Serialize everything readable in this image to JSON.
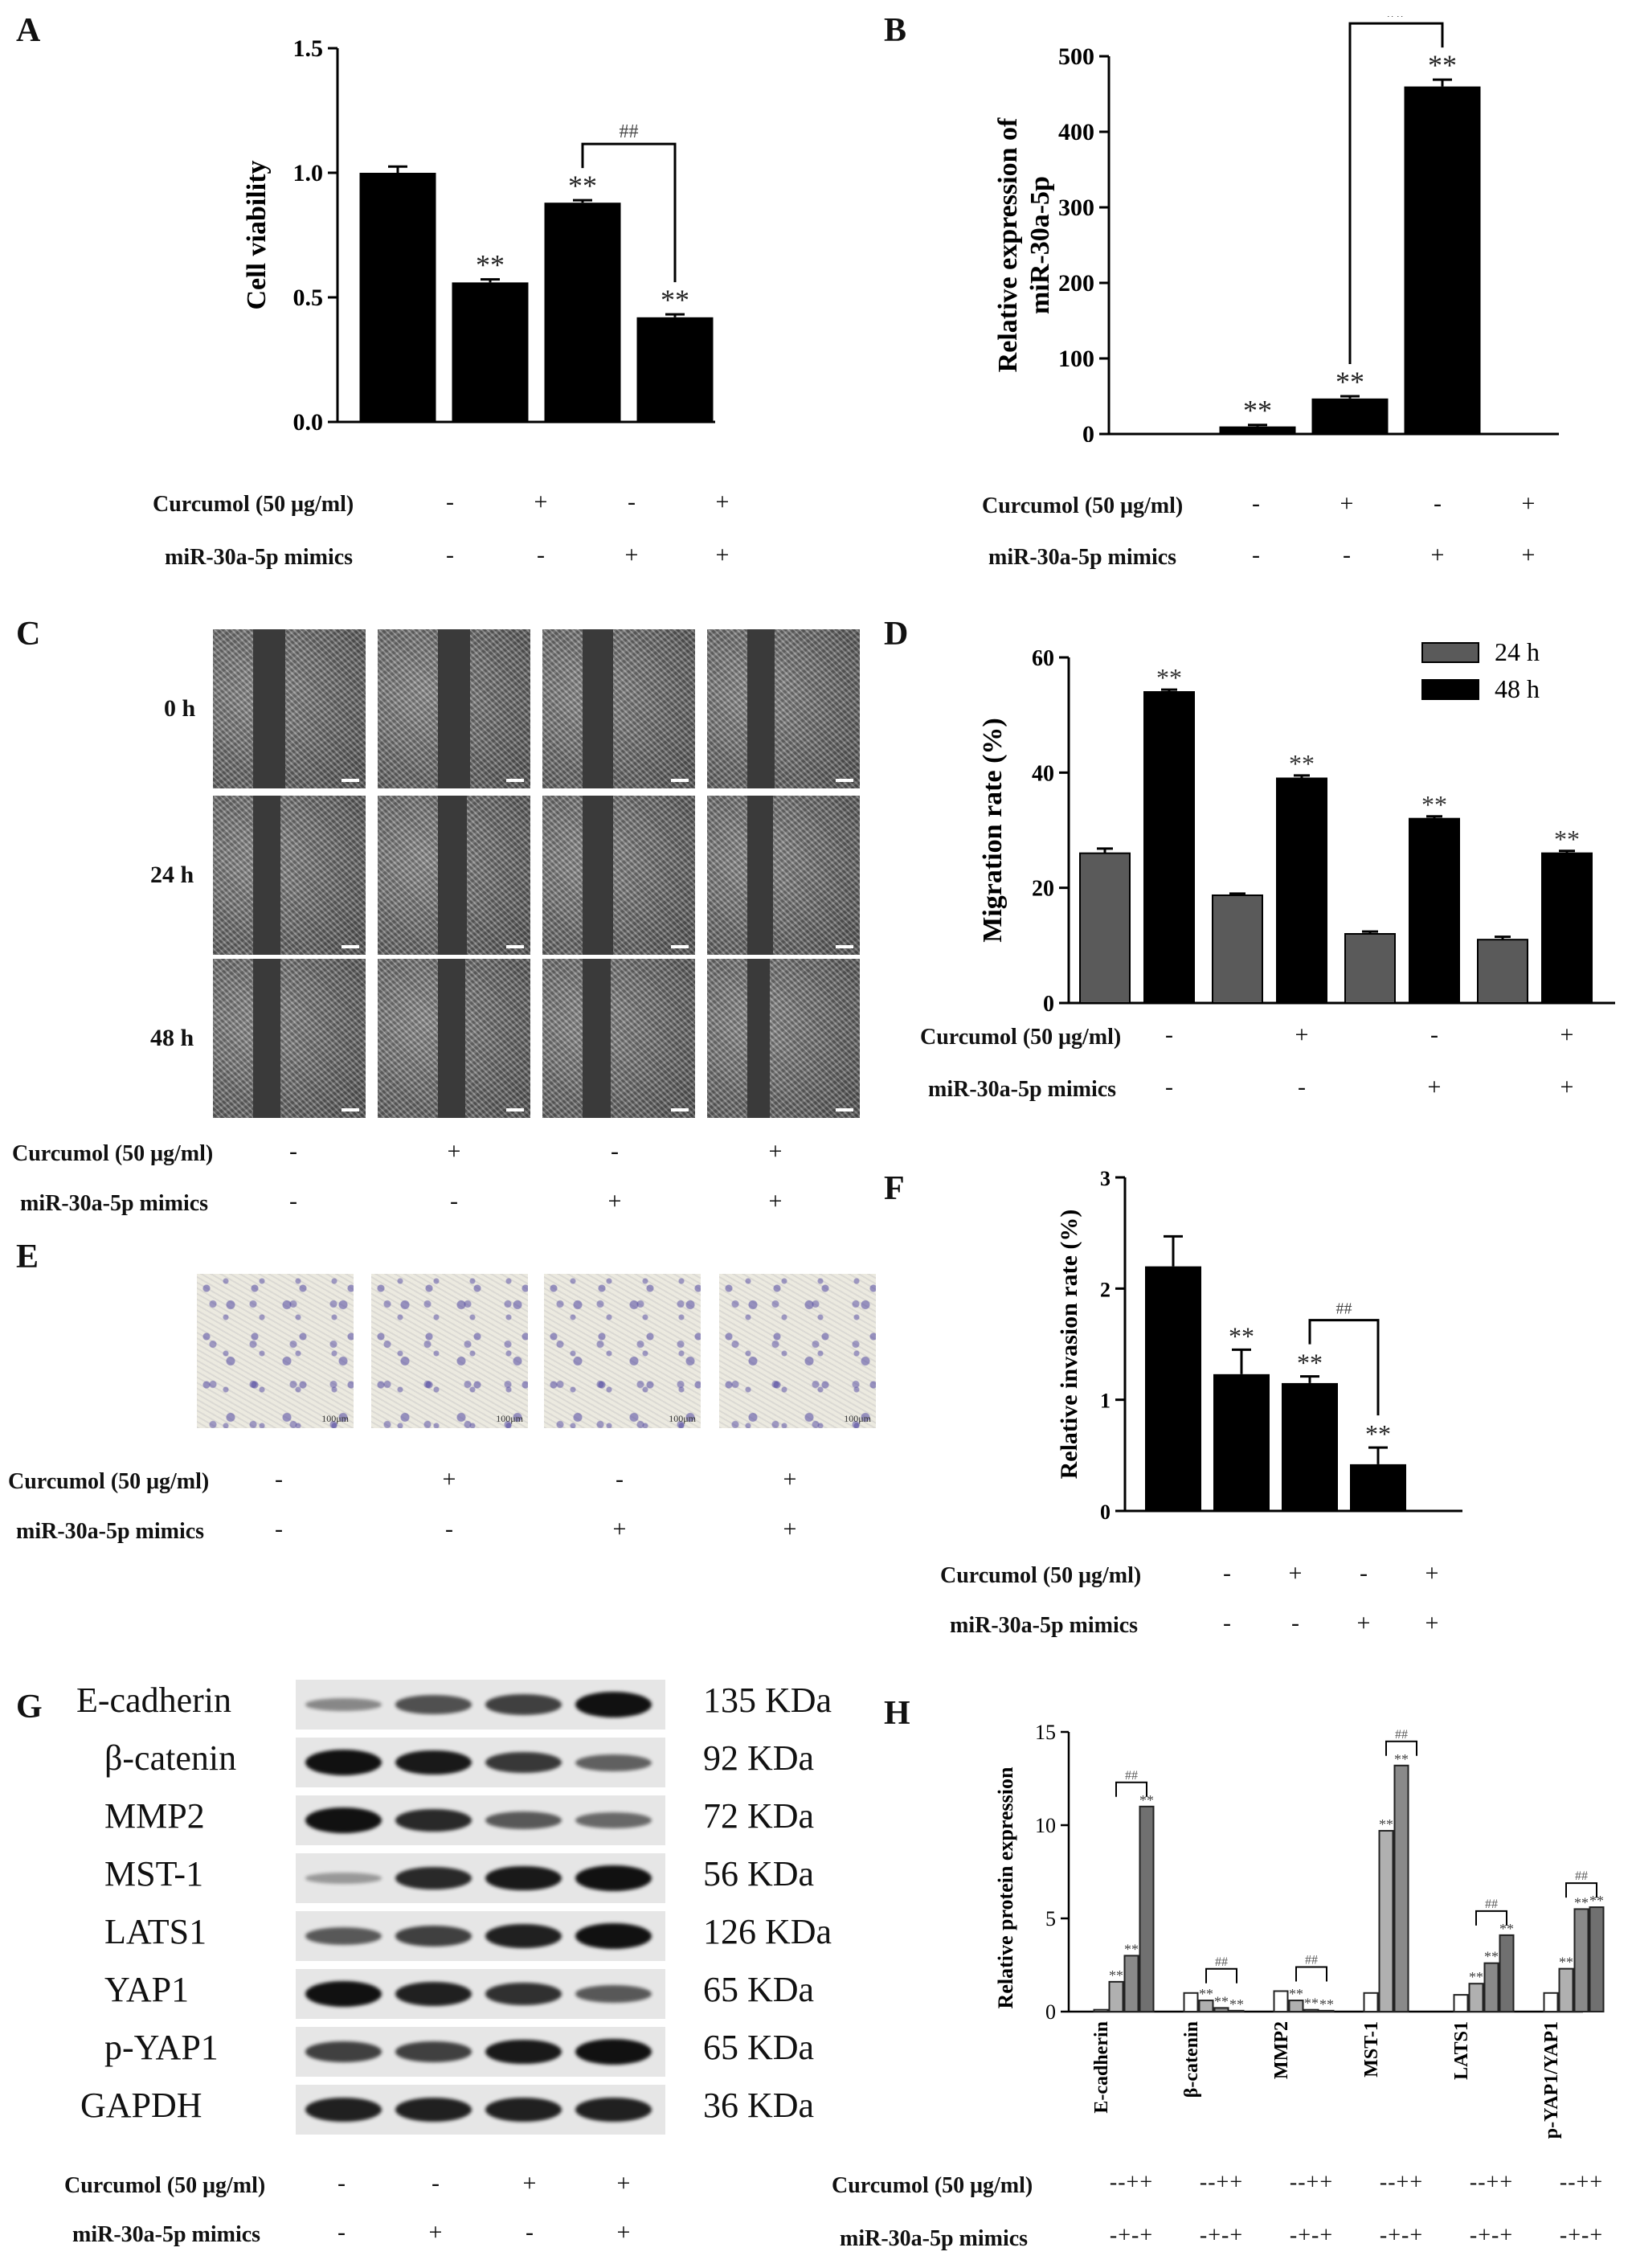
{
  "panels": {
    "A": "A",
    "B": "B",
    "C": "C",
    "D": "D",
    "E": "E",
    "F": "F",
    "G": "G",
    "H": "H"
  },
  "condition_labels": {
    "curcumol": "Curcumol (50 μg/ml)",
    "mimics": "miR-30a-5p mimics"
  },
  "signs": {
    "curcumol": [
      "-",
      "+",
      "-",
      "+"
    ],
    "mimics": [
      "-",
      "-",
      "+",
      "+"
    ],
    "western_curcumol": [
      "-",
      "-",
      "+",
      "+"
    ],
    "western_mimics": [
      "-",
      "+",
      "-",
      "+"
    ],
    "h_curcumol": "--++",
    "h_mimics": "-+-+"
  },
  "scratch_times": [
    "0 h",
    "24 h",
    "48 h"
  ],
  "transwell_scale": "100μm",
  "western": {
    "proteins": [
      "E-cadherin",
      "β-catenin",
      "MMP2",
      "MST-1",
      "LATS1",
      "YAP1",
      "p-YAP1",
      "GAPDH"
    ],
    "sizes": [
      "135 KDa",
      "92 KDa",
      "72 KDa",
      "56 KDa",
      "126 KDa",
      "65 KDa",
      "65 KDa",
      "36 KDa"
    ],
    "intensities": [
      [
        0.25,
        0.6,
        0.7,
        1.0
      ],
      [
        1.0,
        0.95,
        0.75,
        0.5
      ],
      [
        1.0,
        0.85,
        0.55,
        0.45
      ],
      [
        0.15,
        0.85,
        0.95,
        1.0
      ],
      [
        0.55,
        0.7,
        0.9,
        1.0
      ],
      [
        1.0,
        0.9,
        0.8,
        0.55
      ],
      [
        0.7,
        0.7,
        0.95,
        1.0
      ],
      [
        0.9,
        0.9,
        0.9,
        0.9
      ]
    ]
  },
  "chart_data": [
    {
      "id": "A",
      "type": "bar",
      "ylabel": "Cell viability",
      "ylim": [
        0,
        1.5
      ],
      "yticks": [
        "0.0",
        "0.5",
        "1.0",
        "1.5"
      ],
      "values": [
        1.0,
        0.56,
        0.88,
        0.42
      ],
      "errors": [
        0.025,
        0.012,
        0.01,
        0.012
      ],
      "annotations": [
        "",
        "**",
        "**",
        "**"
      ],
      "bracket": {
        "from": 2,
        "to": 3,
        "label": "##"
      }
    },
    {
      "id": "B",
      "type": "bar",
      "ylabel": "Relative expression of miR-30a-5p",
      "ylim": [
        0,
        500
      ],
      "yticks": [
        "0",
        "100",
        "200",
        "300",
        "400",
        "500"
      ],
      "values": [
        1,
        10,
        47,
        460
      ],
      "errors": [
        0,
        2,
        3,
        9
      ],
      "annotations": [
        "",
        "**",
        "**",
        "**"
      ],
      "bracket": {
        "from": 2,
        "to": 3,
        "label": "##"
      }
    },
    {
      "id": "D",
      "type": "bar",
      "ylabel": "Migration rate (%)",
      "ylim": [
        0,
        60
      ],
      "yticks": [
        "0",
        "20",
        "40",
        "60"
      ],
      "series": [
        {
          "name": "24 h",
          "color": "#5a5a5a",
          "values": [
            26,
            18.7,
            12,
            11
          ],
          "errors": [
            0.8,
            0.3,
            0.4,
            0.5
          ]
        },
        {
          "name": "48 h",
          "color": "#000000",
          "values": [
            54,
            39,
            32,
            26
          ],
          "errors": [
            0.4,
            0.5,
            0.4,
            0.4
          ]
        }
      ],
      "annotations": [
        "**",
        "**",
        "**",
        "**"
      ],
      "legend": "top-right"
    },
    {
      "id": "F",
      "type": "bar",
      "ylabel": "Relative invasion rate (%)",
      "ylim": [
        0,
        3
      ],
      "yticks": [
        "0",
        "1",
        "2",
        "3"
      ],
      "values": [
        2.2,
        1.23,
        1.15,
        0.42
      ],
      "errors": [
        0.27,
        0.22,
        0.06,
        0.15
      ],
      "annotations": [
        "",
        "**",
        "**",
        "**"
      ],
      "bracket": {
        "from": 2,
        "to": 3,
        "label": "##"
      }
    },
    {
      "id": "H",
      "type": "bar",
      "ylabel": "Relative protein expression",
      "ylim": [
        0,
        15
      ],
      "yticks": [
        "0",
        "5",
        "10",
        "15"
      ],
      "categories": [
        "E-cadherin",
        "β-catenin",
        "MMP2",
        "MST-1",
        "LATS1",
        "p-YAP1/YAP1"
      ],
      "groups": [
        {
          "values": [
            0.1,
            1.6,
            3.0,
            11.0
          ],
          "annotations": [
            "",
            "**",
            "**",
            "**"
          ]
        },
        {
          "values": [
            1.0,
            0.6,
            0.2,
            0.05
          ],
          "annotations": [
            "",
            "**",
            "**",
            "**"
          ]
        },
        {
          "values": [
            1.1,
            0.6,
            0.1,
            0.05
          ],
          "annotations": [
            "",
            "**",
            "**",
            "**"
          ]
        },
        {
          "values": [
            1.0,
            9.7,
            13.2,
            0
          ],
          "annotations": [
            "",
            "**",
            "**",
            ""
          ]
        },
        {
          "values": [
            0.9,
            1.5,
            2.6,
            4.1
          ],
          "annotations": [
            "",
            "**",
            "**",
            "**"
          ]
        },
        {
          "values": [
            1.0,
            2.3,
            5.5,
            5.6
          ],
          "annotations": [
            "",
            "**",
            "**",
            "**"
          ]
        }
      ],
      "bracket_label": "##"
    }
  ]
}
